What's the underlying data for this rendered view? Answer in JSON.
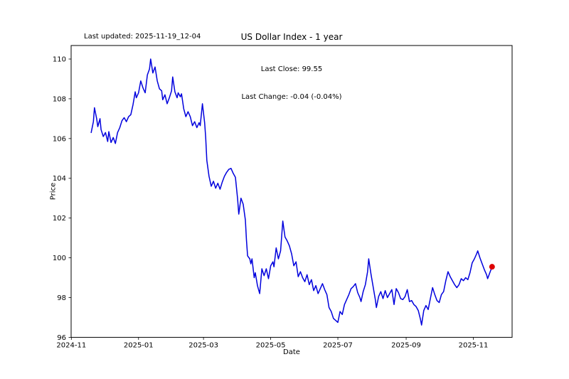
{
  "figure": {
    "last_updated": "Last updated: 2025-11-19_12-04",
    "title": "US Dollar Index - 1 year",
    "annotation_line1": "Last Close: 99.55",
    "annotation_line2": "Last Change: -0.04 (-0.04%)"
  },
  "chart_data": {
    "type": "line",
    "title": "US Dollar Index - 1 year",
    "xlabel": "Date",
    "ylabel": "Price",
    "legend": "none",
    "grid": false,
    "line_color": "#0000dd",
    "marker_color": "#dd0000",
    "axis_color": "#000000",
    "x_unit": "days since 2024-11-01",
    "xlim": [
      -0.2,
      400.2
    ],
    "ylim": [
      96,
      110.68
    ],
    "y_ticks": [
      96,
      98,
      100,
      102,
      104,
      106,
      108,
      110
    ],
    "x_ticks": [
      {
        "label": "2024-11",
        "day": 0
      },
      {
        "label": "2025-01",
        "day": 61
      },
      {
        "label": "2025-03",
        "day": 120
      },
      {
        "label": "2025-05",
        "day": 181
      },
      {
        "label": "2025-07",
        "day": 242
      },
      {
        "label": "2025-09",
        "day": 304
      },
      {
        "label": "2025-11",
        "day": 365
      }
    ],
    "last_close": 99.55,
    "last_change": "-0.04 (-0.04%)",
    "marker_point": {
      "day": 382,
      "value": 99.55
    },
    "series": [
      {
        "name": "US Dollar Index",
        "points": [
          [
            18,
            106.3
          ],
          [
            20,
            106.85
          ],
          [
            21,
            107.55
          ],
          [
            23,
            107.0
          ],
          [
            24,
            106.6
          ],
          [
            26,
            107.0
          ],
          [
            27,
            106.45
          ],
          [
            29,
            106.1
          ],
          [
            31,
            106.3
          ],
          [
            33,
            105.85
          ],
          [
            34,
            106.35
          ],
          [
            36,
            105.8
          ],
          [
            38,
            106.05
          ],
          [
            40,
            105.75
          ],
          [
            42,
            106.3
          ],
          [
            44,
            106.55
          ],
          [
            46,
            106.9
          ],
          [
            48,
            107.05
          ],
          [
            50,
            106.85
          ],
          [
            52,
            107.1
          ],
          [
            54,
            107.2
          ],
          [
            56,
            107.7
          ],
          [
            58,
            108.35
          ],
          [
            59,
            108.05
          ],
          [
            61,
            108.3
          ],
          [
            63,
            108.9
          ],
          [
            65,
            108.55
          ],
          [
            67,
            108.3
          ],
          [
            69,
            109.2
          ],
          [
            71,
            109.5
          ],
          [
            72,
            110.0
          ],
          [
            74,
            109.3
          ],
          [
            76,
            109.6
          ],
          [
            78,
            108.9
          ],
          [
            80,
            108.5
          ],
          [
            82,
            108.4
          ],
          [
            83,
            107.95
          ],
          [
            85,
            108.2
          ],
          [
            87,
            107.75
          ],
          [
            89,
            108.05
          ],
          [
            91,
            108.4
          ],
          [
            92,
            109.1
          ],
          [
            94,
            108.35
          ],
          [
            96,
            108.05
          ],
          [
            97,
            108.3
          ],
          [
            99,
            108.1
          ],
          [
            100,
            108.25
          ],
          [
            102,
            107.5
          ],
          [
            104,
            107.1
          ],
          [
            106,
            107.35
          ],
          [
            108,
            107.1
          ],
          [
            110,
            106.65
          ],
          [
            112,
            106.85
          ],
          [
            114,
            106.55
          ],
          [
            116,
            106.8
          ],
          [
            117,
            106.65
          ],
          [
            119,
            107.75
          ],
          [
            121,
            106.8
          ],
          [
            122,
            106.05
          ],
          [
            123,
            104.9
          ],
          [
            125,
            104.1
          ],
          [
            127,
            103.6
          ],
          [
            129,
            103.85
          ],
          [
            131,
            103.5
          ],
          [
            133,
            103.75
          ],
          [
            135,
            103.45
          ],
          [
            137,
            103.8
          ],
          [
            139,
            104.1
          ],
          [
            141,
            104.3
          ],
          [
            143,
            104.45
          ],
          [
            145,
            104.5
          ],
          [
            147,
            104.25
          ],
          [
            149,
            104.05
          ],
          [
            151,
            102.95
          ],
          [
            152,
            102.2
          ],
          [
            154,
            103.0
          ],
          [
            156,
            102.7
          ],
          [
            158,
            101.9
          ],
          [
            159,
            100.9
          ],
          [
            160,
            100.1
          ],
          [
            162,
            99.95
          ],
          [
            163,
            99.7
          ],
          [
            164,
            99.95
          ],
          [
            166,
            99.0
          ],
          [
            167,
            99.25
          ],
          [
            169,
            98.6
          ],
          [
            171,
            98.2
          ],
          [
            173,
            99.45
          ],
          [
            175,
            99.1
          ],
          [
            177,
            99.45
          ],
          [
            179,
            98.95
          ],
          [
            181,
            99.6
          ],
          [
            183,
            99.8
          ],
          [
            184,
            99.55
          ],
          [
            186,
            100.5
          ],
          [
            188,
            99.95
          ],
          [
            190,
            100.35
          ],
          [
            192,
            101.85
          ],
          [
            194,
            101.05
          ],
          [
            196,
            100.85
          ],
          [
            198,
            100.6
          ],
          [
            200,
            100.2
          ],
          [
            202,
            99.6
          ],
          [
            204,
            99.8
          ],
          [
            206,
            99.05
          ],
          [
            208,
            99.3
          ],
          [
            210,
            99.0
          ],
          [
            212,
            98.8
          ],
          [
            214,
            99.15
          ],
          [
            216,
            98.65
          ],
          [
            218,
            98.9
          ],
          [
            220,
            98.35
          ],
          [
            222,
            98.6
          ],
          [
            224,
            98.2
          ],
          [
            226,
            98.45
          ],
          [
            228,
            98.7
          ],
          [
            230,
            98.4
          ],
          [
            232,
            98.15
          ],
          [
            234,
            97.5
          ],
          [
            236,
            97.3
          ],
          [
            238,
            96.95
          ],
          [
            240,
            96.85
          ],
          [
            242,
            96.75
          ],
          [
            244,
            97.3
          ],
          [
            246,
            97.15
          ],
          [
            248,
            97.65
          ],
          [
            250,
            97.9
          ],
          [
            252,
            98.15
          ],
          [
            254,
            98.45
          ],
          [
            256,
            98.55
          ],
          [
            258,
            98.7
          ],
          [
            260,
            98.25
          ],
          [
            262,
            98.0
          ],
          [
            263,
            97.8
          ],
          [
            265,
            98.3
          ],
          [
            267,
            98.65
          ],
          [
            269,
            99.3
          ],
          [
            270,
            99.95
          ],
          [
            272,
            99.2
          ],
          [
            274,
            98.55
          ],
          [
            276,
            97.9
          ],
          [
            277,
            97.5
          ],
          [
            279,
            98.05
          ],
          [
            281,
            98.3
          ],
          [
            283,
            97.95
          ],
          [
            285,
            98.35
          ],
          [
            287,
            98.0
          ],
          [
            289,
            98.2
          ],
          [
            291,
            98.4
          ],
          [
            293,
            97.65
          ],
          [
            295,
            98.45
          ],
          [
            297,
            98.25
          ],
          [
            299,
            97.95
          ],
          [
            301,
            97.9
          ],
          [
            303,
            98.05
          ],
          [
            305,
            98.4
          ],
          [
            307,
            97.8
          ],
          [
            309,
            97.85
          ],
          [
            311,
            97.65
          ],
          [
            313,
            97.55
          ],
          [
            315,
            97.35
          ],
          [
            317,
            96.9
          ],
          [
            318,
            96.62
          ],
          [
            320,
            97.35
          ],
          [
            322,
            97.6
          ],
          [
            324,
            97.4
          ],
          [
            326,
            97.95
          ],
          [
            328,
            98.5
          ],
          [
            330,
            98.15
          ],
          [
            332,
            97.85
          ],
          [
            334,
            97.75
          ],
          [
            336,
            98.15
          ],
          [
            338,
            98.3
          ],
          [
            340,
            98.85
          ],
          [
            342,
            99.3
          ],
          [
            344,
            99.05
          ],
          [
            346,
            98.85
          ],
          [
            348,
            98.65
          ],
          [
            350,
            98.5
          ],
          [
            352,
            98.65
          ],
          [
            354,
            98.95
          ],
          [
            356,
            98.85
          ],
          [
            358,
            99.0
          ],
          [
            360,
            98.9
          ],
          [
            362,
            99.25
          ],
          [
            364,
            99.75
          ],
          [
            366,
            99.95
          ],
          [
            368,
            100.2
          ],
          [
            369,
            100.35
          ],
          [
            371,
            100.0
          ],
          [
            373,
            99.7
          ],
          [
            375,
            99.4
          ],
          [
            377,
            99.15
          ],
          [
            378,
            98.95
          ],
          [
            380,
            99.25
          ],
          [
            382,
            99.55
          ]
        ]
      }
    ]
  }
}
